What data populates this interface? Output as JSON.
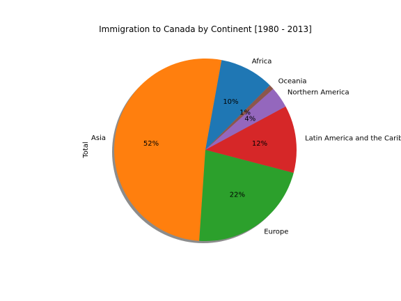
{
  "chart_data": {
    "type": "pie",
    "title": "Immigration to Canada by Continent [1980 - 2013]",
    "ylabel": "Total",
    "categories": [
      "Africa",
      "Asia",
      "Europe",
      "Latin America and the Caribbean",
      "Northern America",
      "Oceania"
    ],
    "values": [
      618948,
      3317794,
      1410947,
      765148,
      241142,
      55174
    ],
    "percent_labels": [
      "10%",
      "52%",
      "22%",
      "12%",
      "4%",
      "1%"
    ],
    "colors": [
      "#1f77b4",
      "#ff7f0e",
      "#2ca02c",
      "#d62728",
      "#9467bd",
      "#8c564b"
    ],
    "start_angle_deg": 45,
    "shadow": true,
    "legend": "none"
  }
}
